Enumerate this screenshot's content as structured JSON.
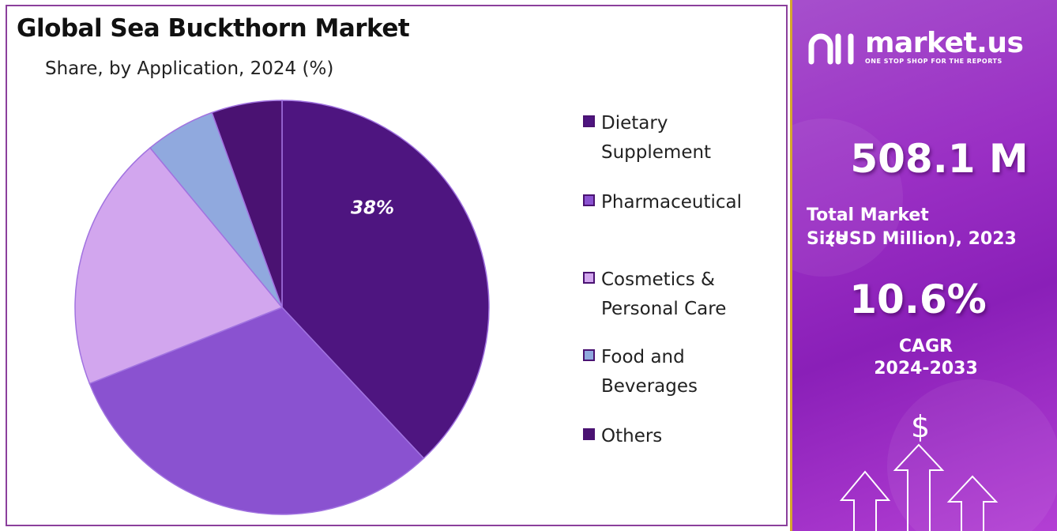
{
  "chart_data": {
    "type": "pie",
    "title": "Global Sea Buckthorn Market",
    "subtitle": "Share, by Application, 2024 (%)",
    "categories": [
      "Dietary\nSupplement",
      "Pharmaceutical",
      "Cosmetics &\nPersonal Care",
      "Food and\nBeverages",
      "Others"
    ],
    "values": [
      38,
      31,
      20,
      5.5,
      5.5
    ],
    "colors": [
      "#4e1580",
      "#8a52d0",
      "#d2a6ee",
      "#90a9de",
      "#4a1272"
    ],
    "data_labels": [
      "38%",
      "",
      "",
      "",
      ""
    ],
    "legend_placement": "right"
  },
  "side": {
    "brand": "market.us",
    "tagline": "ONE STOP SHOP FOR THE REPORTS",
    "market_size": "508.1 M",
    "market_size_label_1": "Total Market Size",
    "market_size_label_2": "(USD Million), 2023",
    "cagr": "10.6%",
    "cagr_label_1": "CAGR",
    "cagr_label_2": "2024-2033",
    "dollar_symbol": "$"
  },
  "icons": [
    "logo-icon",
    "dollar-icon",
    "arrow-up-icon"
  ]
}
